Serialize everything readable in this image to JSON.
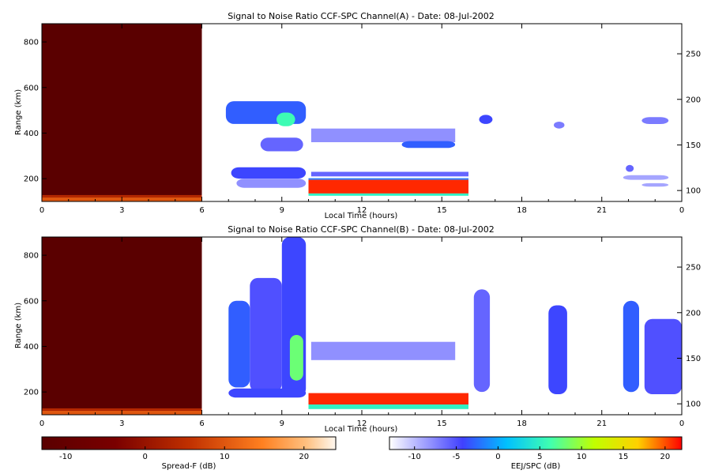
{
  "chart_data": [
    {
      "type": "heatmap",
      "title": "Signal to Noise Ratio CCF-SPC Channel(A) - Date: 08-Jul-2002",
      "xlabel": "Local Time (hours)",
      "ylabel": "Range (km)",
      "xlim": [
        0,
        24
      ],
      "ylim": [
        100,
        880
      ],
      "y2lim": [
        88,
        283
      ],
      "x_ticks": [
        "0",
        "3",
        "6",
        "9",
        "12",
        "15",
        "18",
        "21",
        "0"
      ],
      "y_ticks": [
        200,
        400,
        600,
        800
      ],
      "y2_ticks": [
        100,
        150,
        200,
        250
      ],
      "regions": [
        {
          "layer": "spreadf",
          "x": [
            0,
            6
          ],
          "y": [
            100,
            880
          ],
          "value": -13
        },
        {
          "layer": "spreadf",
          "x": [
            0,
            6
          ],
          "y": [
            100,
            118
          ],
          "value": 10
        },
        {
          "layer": "spreadf",
          "x": [
            0,
            6
          ],
          "y": [
            118,
            128
          ],
          "value": 4
        },
        {
          "layer": "ej",
          "x": [
            10,
            16
          ],
          "y": [
            135,
            195
          ],
          "value": 21
        },
        {
          "layer": "ej",
          "x": [
            10,
            16
          ],
          "y": [
            125,
            135
          ],
          "value": 5
        },
        {
          "layer": "ej",
          "x": [
            10,
            16
          ],
          "y": [
            195,
            202
          ],
          "value": -2
        },
        {
          "layer": "ej",
          "x": [
            6.9,
            9.9
          ],
          "y": [
            440,
            540
          ],
          "value": -3
        },
        {
          "layer": "ej",
          "x": [
            8.8,
            9.5
          ],
          "y": [
            430,
            490
          ],
          "value": 6
        },
        {
          "layer": "ej",
          "x": [
            8.2,
            9.8
          ],
          "y": [
            320,
            380
          ],
          "value": -6
        },
        {
          "layer": "ej",
          "x": [
            7.1,
            9.9
          ],
          "y": [
            200,
            250
          ],
          "value": -4
        },
        {
          "layer": "ej",
          "x": [
            7.3,
            9.9
          ],
          "y": [
            160,
            200
          ],
          "value": -8
        },
        {
          "layer": "ej",
          "x": [
            10.1,
            15.5
          ],
          "y": [
            360,
            420
          ],
          "value": -8
        },
        {
          "layer": "ej",
          "x": [
            13.5,
            15.5
          ],
          "y": [
            335,
            365
          ],
          "value": -3
        },
        {
          "layer": "ej",
          "x": [
            10.1,
            16
          ],
          "y": [
            210,
            230
          ],
          "value": -6
        },
        {
          "layer": "ej",
          "x": [
            16.4,
            16.9
          ],
          "y": [
            440,
            480
          ],
          "value": -4
        },
        {
          "layer": "ej",
          "x": [
            19.2,
            19.6
          ],
          "y": [
            420,
            450
          ],
          "value": -7
        },
        {
          "layer": "ej",
          "x": [
            21.9,
            22.2
          ],
          "y": [
            230,
            260
          ],
          "value": -6
        },
        {
          "layer": "ej",
          "x": [
            22.5,
            23.5
          ],
          "y": [
            440,
            470
          ],
          "value": -7
        },
        {
          "layer": "ej",
          "x": [
            21.8,
            23.5
          ],
          "y": [
            195,
            215
          ],
          "value": -9
        },
        {
          "layer": "ej",
          "x": [
            22.5,
            23.5
          ],
          "y": [
            165,
            180
          ],
          "value": -9
        }
      ]
    },
    {
      "type": "heatmap",
      "title": "Signal to Noise Ratio CCF-SPC Channel(B) - Date: 08-Jul-2002",
      "xlabel": "Local Time (hours)",
      "ylabel": "Range (km)",
      "xlim": [
        0,
        24
      ],
      "ylim": [
        100,
        880
      ],
      "y2lim": [
        88,
        283
      ],
      "x_ticks": [
        "0",
        "3",
        "6",
        "9",
        "12",
        "15",
        "18",
        "21",
        "0"
      ],
      "y_ticks": [
        200,
        400,
        600,
        800
      ],
      "y2_ticks": [
        100,
        150,
        200,
        250
      ],
      "regions": [
        {
          "layer": "spreadf",
          "x": [
            0,
            6
          ],
          "y": [
            100,
            880
          ],
          "value": -13
        },
        {
          "layer": "spreadf",
          "x": [
            0,
            6
          ],
          "y": [
            100,
            118
          ],
          "value": 10
        },
        {
          "layer": "spreadf",
          "x": [
            0,
            6
          ],
          "y": [
            118,
            128
          ],
          "value": 4
        },
        {
          "layer": "ej",
          "x": [
            10,
            16
          ],
          "y": [
            145,
            195
          ],
          "value": 21
        },
        {
          "layer": "ej",
          "x": [
            10,
            16
          ],
          "y": [
            125,
            145
          ],
          "value": 5
        },
        {
          "layer": "ej",
          "x": [
            7.0,
            7.8
          ],
          "y": [
            220,
            600
          ],
          "value": -3
        },
        {
          "layer": "ej",
          "x": [
            7.8,
            9.0
          ],
          "y": [
            200,
            700
          ],
          "value": -5
        },
        {
          "layer": "ej",
          "x": [
            9.0,
            9.9
          ],
          "y": [
            180,
            880
          ],
          "value": -4
        },
        {
          "layer": "ej",
          "x": [
            9.3,
            9.8
          ],
          "y": [
            250,
            450
          ],
          "value": 8
        },
        {
          "layer": "ej",
          "x": [
            7.0,
            9.9
          ],
          "y": [
            175,
            215
          ],
          "value": -4
        },
        {
          "layer": "ej",
          "x": [
            10.1,
            15.5
          ],
          "y": [
            340,
            420
          ],
          "value": -8
        },
        {
          "layer": "ej",
          "x": [
            16.2,
            16.8
          ],
          "y": [
            200,
            650
          ],
          "value": -6
        },
        {
          "layer": "ej",
          "x": [
            19.0,
            19.7
          ],
          "y": [
            190,
            580
          ],
          "value": -4
        },
        {
          "layer": "ej",
          "x": [
            21.8,
            22.4
          ],
          "y": [
            200,
            600
          ],
          "value": -3
        },
        {
          "layer": "ej",
          "x": [
            22.6,
            24.0
          ],
          "y": [
            190,
            520
          ],
          "value": -5
        }
      ]
    }
  ],
  "colorbars": [
    {
      "label": "Spread-F (dB)",
      "range": [
        -13,
        24
      ],
      "ticks": [
        -10,
        0,
        10,
        20
      ]
    },
    {
      "label": "EEJ/SPC (dB)",
      "range": [
        -13,
        22
      ],
      "ticks": [
        -10,
        -5,
        0,
        5,
        10,
        15,
        20
      ]
    }
  ]
}
